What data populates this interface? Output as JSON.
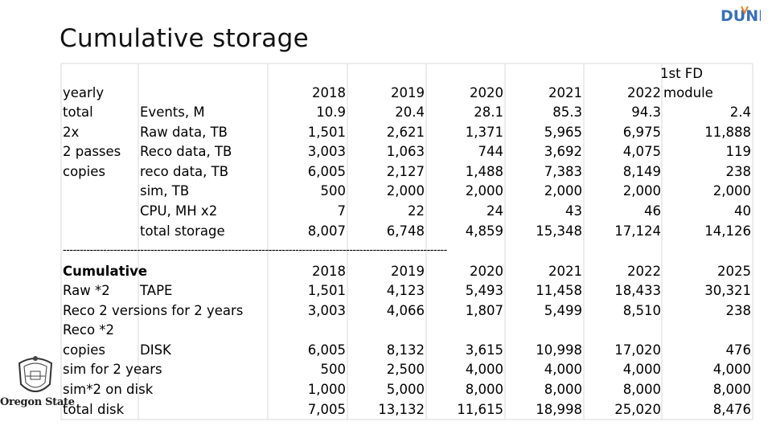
{
  "slide": {
    "title": "Cumulative storage",
    "logo_text": "DUNE",
    "institution": "Oregon State"
  },
  "yearly_table": {
    "header_label": "yearly",
    "col_headers": [
      "2018",
      "2019",
      "2020",
      "2021",
      "2022",
      "1st FD module"
    ],
    "col_header_last_line1": "1st FD",
    "col_header_last_line2": "module",
    "rows": [
      {
        "note": "total",
        "label": "Events, M",
        "values": [
          "10.9",
          "20.4",
          "28.1",
          "85.3",
          "94.3",
          "2.4"
        ]
      },
      {
        "note": "2x",
        "label": "Raw data, TB",
        "values": [
          "1,501",
          "2,621",
          "1,371",
          "5,965",
          "6,975",
          "11,888"
        ]
      },
      {
        "note": "2 passes",
        "label": "Reco data, TB",
        "values": [
          "3,003",
          "1,063",
          "744",
          "3,692",
          "4,075",
          "119"
        ]
      },
      {
        "note": "copies",
        "label": "reco data, TB",
        "values": [
          "6,005",
          "2,127",
          "1,488",
          "7,383",
          "8,149",
          "238"
        ]
      },
      {
        "note": "",
        "label": "sim, TB",
        "values": [
          "500",
          "2,000",
          "2,000",
          "2,000",
          "2,000",
          "2,000"
        ]
      },
      {
        "note": "",
        "label": "CPU, MH x2",
        "values": [
          "7",
          "22",
          "24",
          "43",
          "46",
          "40"
        ]
      },
      {
        "note": "",
        "label": "total storage",
        "values": [
          "8,007",
          "6,748",
          "4,859",
          "15,348",
          "17,124",
          "14,126"
        ]
      }
    ]
  },
  "separator": "------------------------------------------------------------------------------------------------------------------",
  "cumulative_table": {
    "header_label": "Cumulative",
    "col_headers": [
      "2018",
      "2019",
      "2020",
      "2021",
      "2022",
      "2025"
    ],
    "rows": [
      {
        "label": "Raw *2",
        "label2": "TAPE",
        "values": [
          "1,501",
          "4,123",
          "5,493",
          "11,458",
          "18,433",
          "30,321"
        ]
      },
      {
        "label": "Reco 2 versions for 2 years",
        "label2": "",
        "values": [
          "3,003",
          "4,066",
          "1,807",
          "5,499",
          "8,510",
          "238"
        ]
      },
      {
        "label": "Reco *2",
        "label2": "",
        "values": [
          "",
          "",
          "",
          "",
          "",
          ""
        ]
      },
      {
        "label": "copies",
        "label2": "DISK",
        "values": [
          "6,005",
          "8,132",
          "3,615",
          "10,998",
          "17,020",
          "476"
        ]
      },
      {
        "label": "sim for 2 years",
        "label2": "",
        "values": [
          "500",
          "2,500",
          "4,000",
          "4,000",
          "4,000",
          "4,000"
        ]
      },
      {
        "label": "sim*2 on disk",
        "label2": "",
        "values": [
          "1,000",
          "5,000",
          "8,000",
          "8,000",
          "8,000",
          "8,000"
        ]
      },
      {
        "label": "total disk",
        "label2": "",
        "values": [
          "7,005",
          "13,132",
          "11,615",
          "18,998",
          "25,020",
          "8,476"
        ]
      }
    ]
  },
  "colors": {
    "grid_line": "#d9d9d9",
    "logo_blue": "#3a6fb6",
    "logo_orange": "#e8822a"
  }
}
